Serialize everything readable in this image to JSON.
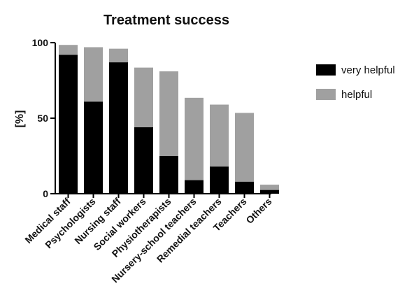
{
  "chart_data": {
    "type": "bar",
    "stacked": true,
    "title": "Treatment success",
    "xlabel": "",
    "ylabel": "[%]",
    "ylim": [
      0,
      100
    ],
    "yticks": [
      0,
      50,
      100
    ],
    "categories": [
      "Medical staff",
      "Psychologists",
      "Nursing staff",
      "Social workers",
      "Physiotherapists",
      "Nursery-school teachers",
      "Remedial teachers",
      "Teachers",
      "Others"
    ],
    "series": [
      {
        "name": "very helpful",
        "color": "#000000",
        "values": [
          92,
          61,
          87,
          44,
          25,
          9,
          18,
          8,
          2.5
        ]
      },
      {
        "name": "helpful",
        "color": "#a0a0a0",
        "values": [
          6.5,
          36,
          9,
          39.5,
          56,
          54.5,
          41,
          45.5,
          3.5
        ]
      }
    ],
    "legend_position": "right",
    "grid": false
  }
}
